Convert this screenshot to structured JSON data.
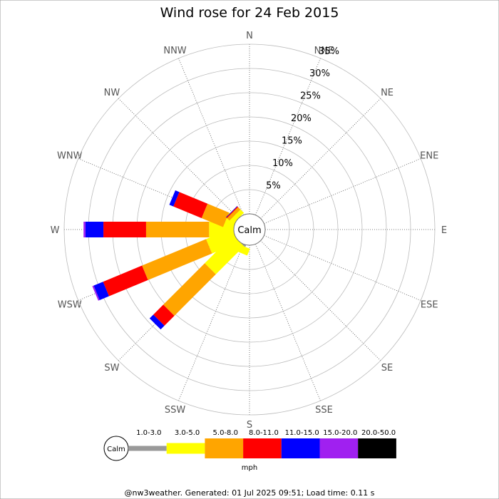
{
  "chart_data": {
    "type": "windrose",
    "title": "Wind rose for 24 Feb 2015",
    "categories": [
      "N",
      "NNE",
      "NE",
      "ENE",
      "E",
      "ESE",
      "SE",
      "SSE",
      "S",
      "SSW",
      "SW",
      "WSW",
      "W",
      "WNW",
      "NW",
      "NNW"
    ],
    "ylim": [
      0,
      35
    ],
    "yticks": [
      {
        "value": 5,
        "label": "5%"
      },
      {
        "value": 10,
        "label": "10%"
      },
      {
        "value": 15,
        "label": "15%"
      },
      {
        "value": 20,
        "label": "20%"
      },
      {
        "value": 25,
        "label": "25%"
      },
      {
        "value": 30,
        "label": "30%"
      },
      {
        "value": 35,
        "label": "35%"
      }
    ],
    "calm_label": "Calm",
    "legend_unit": "mph",
    "series": [
      {
        "name": "1.0-3.0",
        "color": "#999999",
        "values": [
          0,
          0,
          0,
          0,
          0,
          0,
          0,
          0,
          0,
          0.4,
          0,
          0,
          0,
          0,
          0,
          0
        ]
      },
      {
        "name": "3.0-5.0",
        "color": "#ffff00",
        "values": [
          0,
          0,
          0,
          0,
          0,
          0,
          0,
          0,
          0,
          1.5,
          8.2,
          5.8,
          5.1,
          2,
          1,
          0
        ]
      },
      {
        "name": "5.0-8.0",
        "color": "#ffa500",
        "values": [
          0,
          0,
          0,
          0,
          0,
          0,
          0,
          0,
          0,
          0,
          12.1,
          14.3,
          13,
          4.8,
          0.7,
          0
        ]
      },
      {
        "name": "8.0-11.0",
        "color": "#ff0000",
        "values": [
          0,
          0,
          0,
          0,
          0,
          0,
          0,
          0,
          0,
          0,
          2.9,
          8.7,
          8.8,
          6.3,
          0.2,
          0
        ]
      },
      {
        "name": "11.0-15.0",
        "color": "#0000ff",
        "values": [
          0,
          0,
          0,
          0,
          0,
          0,
          0,
          0,
          0,
          0,
          1.1,
          2.1,
          3.7,
          0.9,
          0.1,
          0
        ]
      },
      {
        "name": "15.0-20.0",
        "color": "#a020f0",
        "values": [
          0,
          0,
          0,
          0,
          0,
          0,
          0,
          0,
          0,
          0,
          0,
          0.3,
          0.4,
          0,
          0,
          0
        ]
      },
      {
        "name": "20.0-50.0",
        "color": "#000000",
        "values": [
          0,
          0,
          0,
          0,
          0,
          0,
          0,
          0,
          0,
          0,
          0,
          0,
          0,
          0,
          0,
          0
        ]
      }
    ],
    "footer": "@nw3weather. Generated: 01 Jul 2025 09:51; Load time: 0.11 s"
  }
}
